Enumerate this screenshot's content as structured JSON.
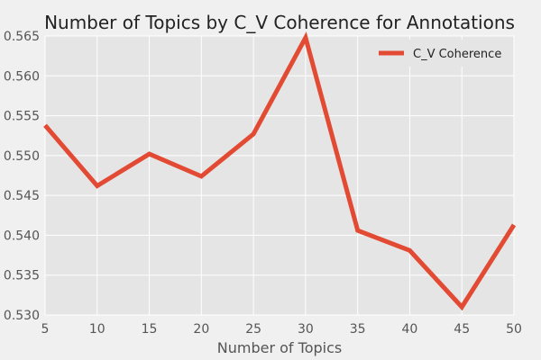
{
  "chart_data": {
    "type": "line",
    "title": "Number of Topics by C_V Coherence for Annotations",
    "xlabel": "Number of Topics",
    "ylabel": "",
    "x": [
      5,
      10,
      15,
      20,
      25,
      30,
      35,
      40,
      45,
      50
    ],
    "series": [
      {
        "name": "C_V Coherence",
        "color": "#e24a33",
        "values": [
          0.5538,
          0.5462,
          0.5502,
          0.5474,
          0.5527,
          0.5648,
          0.5406,
          0.5381,
          0.531,
          0.5413
        ]
      }
    ],
    "xlim": [
      5,
      50
    ],
    "ylim": [
      0.53,
      0.565
    ],
    "x_ticks": [
      "5",
      "10",
      "15",
      "20",
      "25",
      "30",
      "35",
      "40",
      "45",
      "50"
    ],
    "y_ticks": [
      "0.530",
      "0.535",
      "0.540",
      "0.545",
      "0.550",
      "0.555",
      "0.560",
      "0.565"
    ],
    "grid": true,
    "legend_position": "top-right",
    "colors": {
      "background": "#f0f0f0",
      "plot_background": "#e5e5e5",
      "grid": "#ffffff"
    }
  }
}
